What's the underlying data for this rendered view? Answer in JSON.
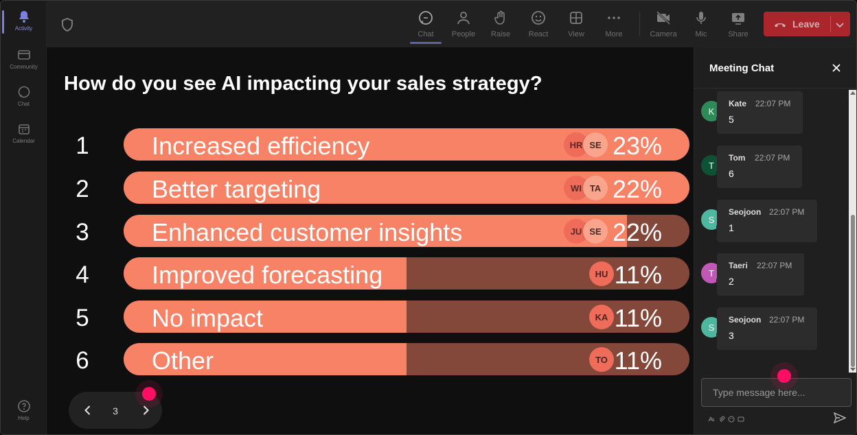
{
  "rail": {
    "items": [
      {
        "label": "Activity",
        "icon": "bell-icon",
        "active": true
      },
      {
        "label": "Community",
        "icon": "community-icon"
      },
      {
        "label": "Chat",
        "icon": "chat-icon"
      },
      {
        "label": "Calendar",
        "icon": "calendar-icon"
      }
    ],
    "help_label": "Help"
  },
  "toolbar": {
    "buttons": [
      {
        "label": "Chat",
        "icon": "chat-icon",
        "active": true
      },
      {
        "label": "People",
        "icon": "people-icon"
      },
      {
        "label": "Raise",
        "icon": "hand-icon"
      },
      {
        "label": "React",
        "icon": "smiley-icon"
      },
      {
        "label": "View",
        "icon": "grid-icon"
      },
      {
        "label": "More",
        "icon": "more-icon"
      },
      {
        "label": "Camera",
        "icon": "camera-off-icon"
      },
      {
        "label": "Mic",
        "icon": "mic-icon"
      },
      {
        "label": "Share",
        "icon": "share-icon"
      }
    ],
    "leave_label": "Leave",
    "leave_color": "#c4262e"
  },
  "poll": {
    "question": "How do you see AI impacting your sales strategy?",
    "bar_color": "#f78266",
    "track_color": "#84483a",
    "options": [
      {
        "num": "1",
        "label": "Increased efficiency",
        "pct": "23%",
        "fill": 1.0,
        "avatars": [
          "HR",
          "SE"
        ]
      },
      {
        "num": "2",
        "label": "Better targeting",
        "pct": "22%",
        "fill": 1.0,
        "avatars": [
          "WI",
          "TA"
        ]
      },
      {
        "num": "3",
        "label": "Enhanced customer insights",
        "pct": "22%",
        "fill": 0.89,
        "avatars": [
          "JU",
          "SE"
        ]
      },
      {
        "num": "4",
        "label": "Improved forecasting",
        "pct": "11%",
        "fill": 0.5,
        "avatars": [
          "HU"
        ]
      },
      {
        "num": "5",
        "label": "No impact",
        "pct": "11%",
        "fill": 0.5,
        "avatars": [
          "KA"
        ]
      },
      {
        "num": "6",
        "label": "Other",
        "pct": "11%",
        "fill": 0.5,
        "avatars": [
          "TO"
        ]
      }
    ]
  },
  "pager": {
    "page": "3"
  },
  "chat": {
    "title": "Meeting Chat",
    "messages": [
      {
        "initial": "K",
        "name": "Kate",
        "time": "22:07 PM",
        "text": "5",
        "color": "#2e8b57"
      },
      {
        "initial": "T",
        "name": "Tom",
        "time": "22:07 PM",
        "text": "6",
        "color": "#0f5135"
      },
      {
        "initial": "S",
        "name": "Seojoon",
        "time": "22:07 PM",
        "text": "1",
        "color": "#4fb7a0"
      },
      {
        "initial": "T",
        "name": "Taeri",
        "time": "22:07 PM",
        "text": "2",
        "color": "#c158b8"
      },
      {
        "initial": "S",
        "name": "Seojoon",
        "time": "22:07 PM",
        "text": "3",
        "color": "#4fb7a0"
      }
    ],
    "input_placeholder": "Type message here..."
  }
}
